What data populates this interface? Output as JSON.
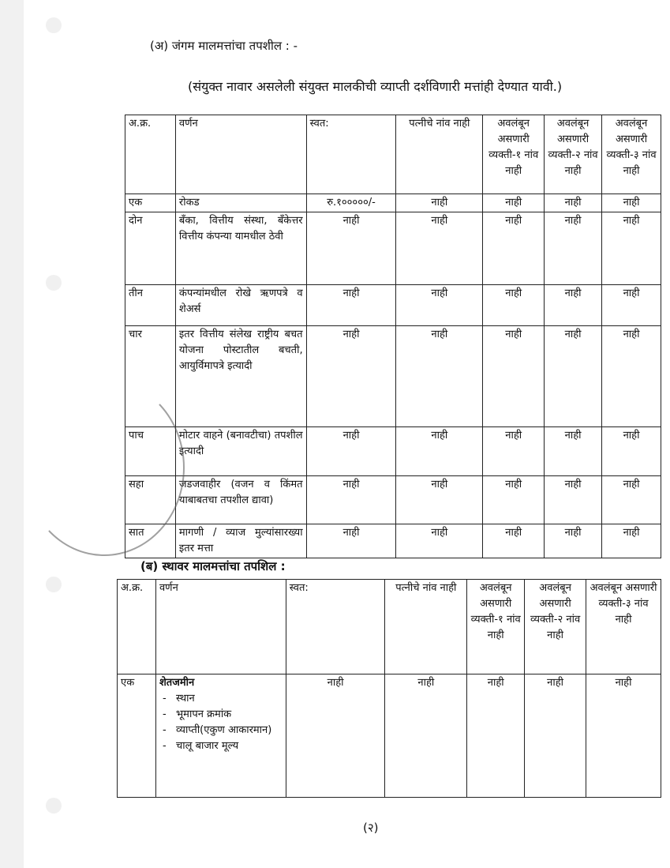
{
  "section_a": {
    "title": "(अ)   जंगम मालमत्तांचा तपशील : -",
    "note": "(संयुक्त नावार असलेली संयुक्त मालकीची व्याप्ती दर्शविणारी मत्तांही देण्यात यावी.)"
  },
  "table_a": {
    "headers": [
      "अ.क्र.",
      "वर्णन",
      "स्वत:",
      "पत्नीचे नांव नाही",
      "अवलंबून असणारी व्यक्ती-१ नांव नाही",
      "अवलंबून असणारी व्यक्ती-२ नांव नाही",
      "अवलंबून असणारी व्यक्ती-३ नांव नाही"
    ],
    "rows": [
      [
        "एक",
        "रोकड",
        "रु.१०००००/-",
        "नाही",
        "नाही",
        "नाही",
        "नाही"
      ],
      [
        "दोन",
        "बँका, वित्तीय संस्था, बँकेत्तर वित्तीय कंपन्या यामधील ठेवी",
        "नाही",
        "नाही",
        "नाही",
        "नाही",
        "नाही"
      ],
      [
        "तीन",
        "कंपन्यांमधील रोखे ऋणपत्रे व शेअर्स",
        "नाही",
        "नाही",
        "नाही",
        "नाही",
        "नाही"
      ],
      [
        "चार",
        "इतर वित्तीय संलेख राष्ट्रीय बचत योजना पोस्टातील बचती, आयुर्विमापत्रे इत्यादी",
        "नाही",
        "नाही",
        "नाही",
        "नाही",
        "नाही"
      ],
      [
        "पाच",
        "मोटार वाहने (बनावटीचा) तपशील इत्यादी",
        "नाही",
        "नाही",
        "नाही",
        "नाही",
        "नाही"
      ],
      [
        "सहा",
        "जडजवाहीर (वजन व किंमत याबाबतचा तपशील द्यावा)",
        "नाही",
        "नाही",
        "नाही",
        "नाही",
        "नाही"
      ],
      [
        "सात",
        "मागणी / व्याज मुल्यांसारख्या इतर मत्ता",
        "नाही",
        "नाही",
        "नाही",
        "नाही",
        "नाही"
      ]
    ]
  },
  "section_b": {
    "title": "(ब)   स्थावर मालमत्तांचा तपशिल :"
  },
  "table_b": {
    "headers": [
      "अ.क्र.",
      "वर्णन",
      "स्वत:",
      "पत्नीचे नांव नाही",
      "अवलंबून असणारी व्यक्ती-१ नांव नाही",
      "अवलंबून असणारी व्यक्ती-२ नांव नाही",
      "अवलंबून असणारी व्यक्ती-३ नांव नाही"
    ],
    "rows": [
      {
        "no": "एक",
        "title": "शेतजमीन",
        "items": [
          "स्थान",
          "भूमापन क्रमांक",
          "व्याप्ती(एकुण आकारमान)",
          "चालू बाजार मूल्य"
        ],
        "values": [
          "नाही",
          "नाही",
          "नाही",
          "नाही",
          "नाही"
        ]
      }
    ]
  },
  "footer": {
    "page": "(२)"
  }
}
